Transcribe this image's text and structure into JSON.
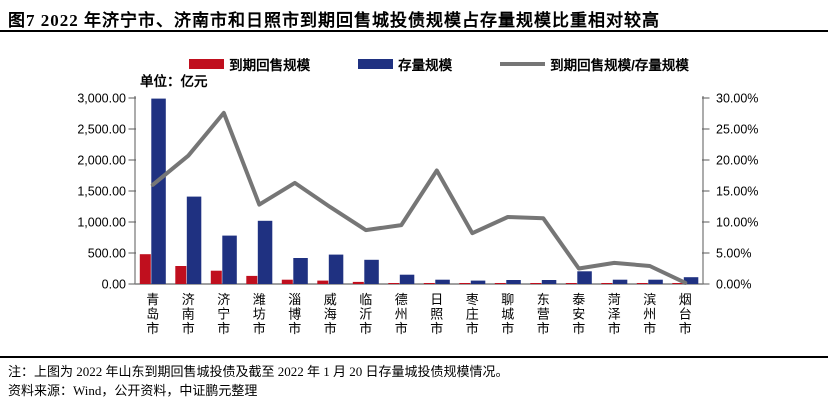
{
  "title": "图7 2022 年济宁市、济南市和日照市到期回售城投债规模占存量规模比重相对较高",
  "unit_label": "单位：亿元",
  "legend": [
    {
      "label": "到期回售规模",
      "color": "#c00f1e",
      "swatch": "bar"
    },
    {
      "label": "存量规模",
      "color": "#1f3181",
      "swatch": "bar"
    },
    {
      "label": "到期回售规模/存量规模",
      "color": "#767676",
      "swatch": "line"
    }
  ],
  "footer": {
    "note": "注：上图为 2022 年山东到期回售城投债及截至 2022 年 1 月 20 日存量城投债规模情况。",
    "source": "资料来源：Wind，公开资料，中证鹏元整理"
  },
  "chart_data": {
    "type": "combo-bar-line",
    "title": "2022年山东各市到期回售城投债规模与存量规模",
    "categories": [
      "青岛市",
      "济南市",
      "济宁市",
      "潍坊市",
      "淄博市",
      "威海市",
      "临沂市",
      "德州市",
      "日照市",
      "枣庄市",
      "聊城市",
      "东营市",
      "泰安市",
      "菏泽市",
      "滨州市",
      "烟台市"
    ],
    "series": [
      {
        "name": "到期回售规模",
        "type": "bar",
        "axis": "left",
        "color": "#c00f1e",
        "values": [
          480,
          290,
          215,
          130,
          70,
          55,
          34,
          14,
          13,
          4,
          7,
          7,
          5,
          2.5,
          2,
          0.3
        ]
      },
      {
        "name": "存量规模",
        "type": "bar",
        "axis": "left",
        "color": "#1f3181",
        "values": [
          2990,
          1410,
          780,
          1020,
          420,
          475,
          390,
          150,
          70,
          55,
          65,
          65,
          205,
          70,
          70,
          110
        ]
      },
      {
        "name": "到期回售规模/存量规模",
        "type": "line",
        "axis": "right",
        "color": "#767676",
        "values": [
          16.0,
          20.7,
          27.6,
          12.8,
          16.3,
          12.4,
          8.7,
          9.5,
          18.3,
          8.2,
          10.8,
          10.6,
          2.5,
          3.4,
          2.9,
          0.2
        ]
      }
    ],
    "left_axis": {
      "min": 0,
      "max": 3000,
      "unit": "亿元",
      "tick_labels": [
        "3,000.00",
        "2,500.00",
        "2,000.00",
        "1,500.00",
        "1,000.00",
        "500.00",
        "0.00"
      ]
    },
    "right_axis": {
      "min": 0,
      "max": 30,
      "unit": "%",
      "tick_labels": [
        "30.00%",
        "25.00%",
        "20.00%",
        "15.00%",
        "10.00%",
        "5.00%",
        "0.00%"
      ]
    },
    "grid": false,
    "legend_position": "top"
  }
}
